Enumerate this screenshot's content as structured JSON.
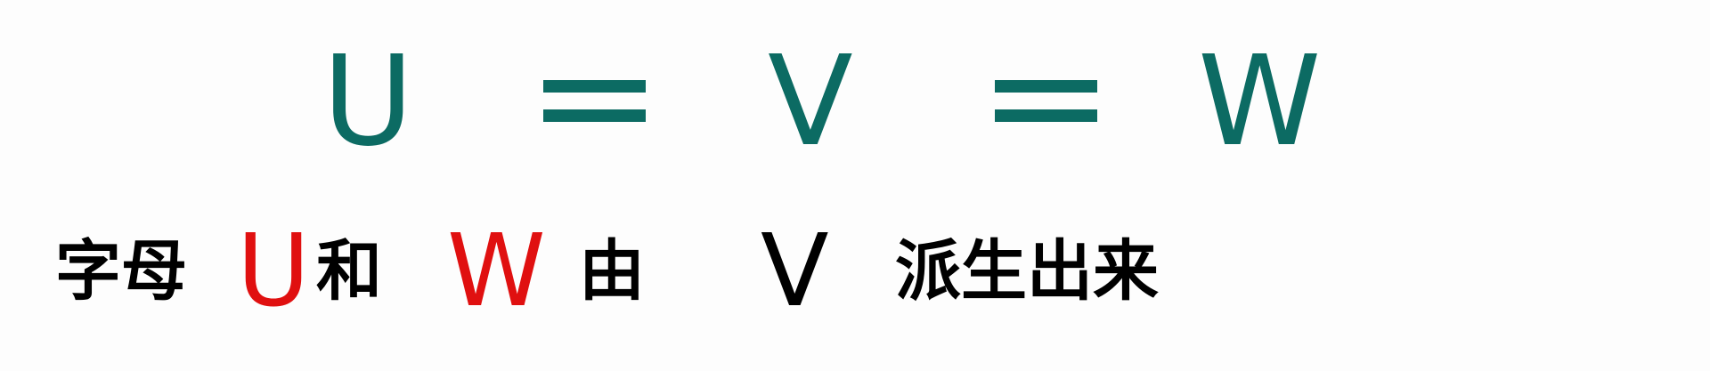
{
  "equation": {
    "left": "U",
    "equals": "=",
    "middle": "V",
    "right": "W"
  },
  "sentence": {
    "part1": "字母",
    "letter_u": "U",
    "part2": "和",
    "letter_w": "W",
    "part3": "由",
    "letter_v": "V",
    "part4": "派生出来"
  },
  "colors": {
    "equation": "#0c6b63",
    "highlight": "#e01010",
    "text": "#000000",
    "background": "#fdfdfd"
  }
}
